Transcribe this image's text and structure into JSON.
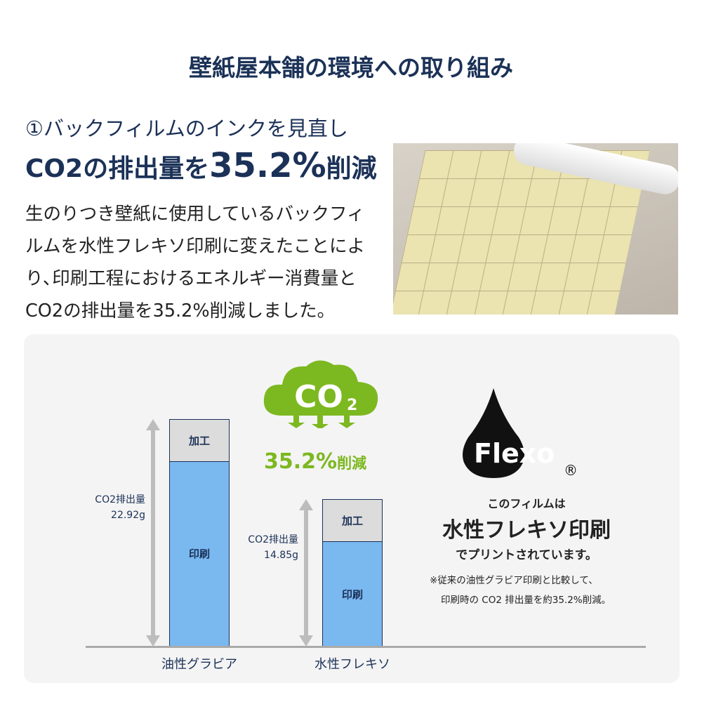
{
  "title": "壁紙屋本舗の環境への取り組み",
  "section": {
    "subtitle": "①バックフィルムのインクを見直し",
    "headline_pre": "CO2の排出量を",
    "headline_value": "35.2%",
    "headline_post": "削減",
    "body": "生のりつき壁紙に使用しているバックフィルムを水性フレキソ印刷に変えたことにより､印刷工程におけるエネルギー消費量とCO2の排出量を35.2%削減しました。"
  },
  "chart_data": {
    "type": "bar",
    "stacked": true,
    "categories": [
      "油性グラビア",
      "水性フレキソ"
    ],
    "series": [
      {
        "name": "印刷",
        "values": [
          18.7,
          10.6
        ]
      },
      {
        "name": "加工",
        "values": [
          4.22,
          4.25
        ]
      }
    ],
    "totals_label": "CO2排出量",
    "totals": [
      "22.92g",
      "14.85g"
    ],
    "totals_values": [
      22.92,
      14.85
    ],
    "colors": {
      "印刷": "#7ab8f0",
      "加工": "#dcdcdc"
    }
  },
  "badge": {
    "cloud_text": "CO",
    "cloud_sub": "2",
    "reduction_value": "35.2%",
    "reduction_suffix": "削減",
    "color": "#7cb81f"
  },
  "flexo": {
    "logo_text": "Flexo",
    "registered": "®",
    "line1": "このフィルムは",
    "line2": "水性フレキソ印刷",
    "line3": "でプリントされています。",
    "note1": "※従来の油性グラビア印刷と比較して、",
    "note2": "印刷時の CO2 排出量を約35.2%削減。"
  }
}
